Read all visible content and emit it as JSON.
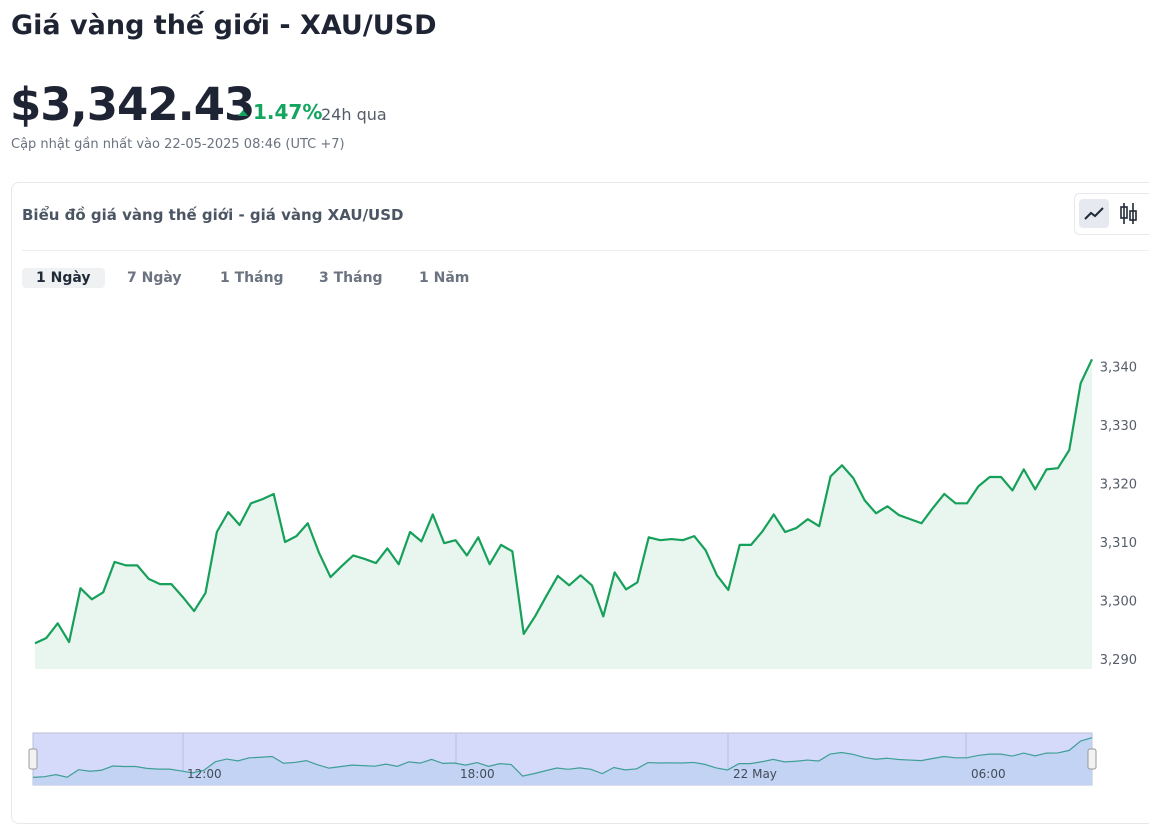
{
  "header": {
    "title": "Giá vàng thế giới - XAU/USD",
    "price": "$3,342.43",
    "change": "1.47%",
    "change_period": "24h qua",
    "updated": "Cập nhật gần nhất vào 22-05-2025 08:46 (UTC +7)"
  },
  "card": {
    "title": "Biểu đồ giá vàng thế giới - giá vàng XAU/USD",
    "tabs": [
      "1 Ngày",
      "7 Ngày",
      "1 Tháng",
      "3 Tháng",
      "1 Năm"
    ],
    "active_tab": 0
  },
  "chart_data": {
    "type": "area",
    "color": "#16a05a",
    "fill": "#e9f6ef",
    "values": [
      3292.7,
      3293.6,
      3296.1,
      3292.9,
      3302.1,
      3300.2,
      3301.4,
      3306.6,
      3306.0,
      3306.0,
      3303.7,
      3302.8,
      3302.8,
      3300.6,
      3298.2,
      3301.3,
      3311.7,
      3315.1,
      3312.9,
      3316.6,
      3317.3,
      3318.2,
      3310.0,
      3311.0,
      3313.2,
      3308.1,
      3304.0,
      3305.9,
      3307.7,
      3307.1,
      3306.4,
      3308.9,
      3306.2,
      3311.7,
      3310.1,
      3314.7,
      3309.8,
      3310.3,
      3307.7,
      3310.8,
      3306.2,
      3309.5,
      3308.4,
      3294.3,
      3297.3,
      3300.8,
      3304.2,
      3302.6,
      3304.3,
      3302.6,
      3297.3,
      3304.8,
      3301.9,
      3303.1,
      3310.8,
      3310.3,
      3310.5,
      3310.3,
      3311.0,
      3308.6,
      3304.3,
      3301.8,
      3309.5,
      3309.5,
      3311.8,
      3314.7,
      3311.7,
      3312.4,
      3313.9,
      3312.7,
      3321.2,
      3323.1,
      3320.9,
      3317.1,
      3314.9,
      3316.1,
      3314.6,
      3313.9,
      3313.2,
      3315.8,
      3318.2,
      3316.6,
      3316.6,
      3319.5,
      3321.1,
      3321.1,
      3318.8,
      3322.4,
      3319.0,
      3322.4,
      3322.6,
      3325.7,
      3337.1,
      3341.2
    ],
    "ylim": [
      3288.3,
      3344.5
    ],
    "yticks": [
      {
        "value": 3290,
        "label": "3,290"
      },
      {
        "value": 3300,
        "label": "3,300"
      },
      {
        "value": 3310,
        "label": "3,310"
      },
      {
        "value": 3320,
        "label": "3,320"
      },
      {
        "value": 3330,
        "label": "3,330"
      },
      {
        "value": 3340,
        "label": "3,340"
      }
    ],
    "navigator_labels": [
      "12:00",
      "18:00",
      "22 May",
      "06:00"
    ]
  }
}
